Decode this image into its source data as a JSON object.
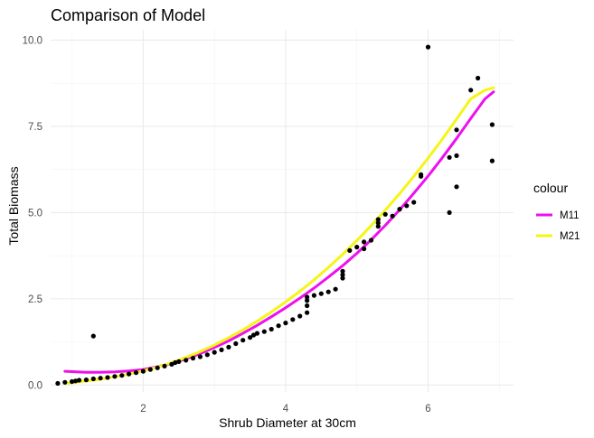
{
  "chart_data": {
    "type": "scatter",
    "title": "Comparison of Model",
    "xlabel": "Shrub Diameter at 30cm",
    "ylabel": "Total Biomass",
    "xlim": [
      0.7,
      7.2
    ],
    "ylim": [
      -0.2,
      10.3
    ],
    "x_ticks": [
      2,
      4,
      6
    ],
    "x_tick_labels": [
      "2",
      "4",
      "6"
    ],
    "y_ticks": [
      0,
      2.5,
      5,
      7.5,
      10
    ],
    "y_tick_labels": [
      "0.0",
      "2.5",
      "5.0",
      "7.5",
      "10.0"
    ],
    "grid": true,
    "legend": {
      "title": "colour",
      "placement": "right"
    },
    "points": [
      [
        0.8,
        0.05
      ],
      [
        0.9,
        0.08
      ],
      [
        1.0,
        0.1
      ],
      [
        1.05,
        0.12
      ],
      [
        1.1,
        0.14
      ],
      [
        1.2,
        0.15
      ],
      [
        1.3,
        1.42
      ],
      [
        1.3,
        0.18
      ],
      [
        1.4,
        0.2
      ],
      [
        1.5,
        0.22
      ],
      [
        1.6,
        0.25
      ],
      [
        1.7,
        0.28
      ],
      [
        1.8,
        0.32
      ],
      [
        1.9,
        0.36
      ],
      [
        2.0,
        0.4
      ],
      [
        2.1,
        0.45
      ],
      [
        2.2,
        0.5
      ],
      [
        2.3,
        0.55
      ],
      [
        2.4,
        0.6
      ],
      [
        2.45,
        0.65
      ],
      [
        2.5,
        0.68
      ],
      [
        2.6,
        0.72
      ],
      [
        2.7,
        0.78
      ],
      [
        2.8,
        0.82
      ],
      [
        2.9,
        0.88
      ],
      [
        3.0,
        0.95
      ],
      [
        3.1,
        1.02
      ],
      [
        3.2,
        1.1
      ],
      [
        3.3,
        1.2
      ],
      [
        3.4,
        1.3
      ],
      [
        3.5,
        1.38
      ],
      [
        3.55,
        1.45
      ],
      [
        3.6,
        1.5
      ],
      [
        3.7,
        1.55
      ],
      [
        3.8,
        1.62
      ],
      [
        3.9,
        1.72
      ],
      [
        4.0,
        1.8
      ],
      [
        4.1,
        1.9
      ],
      [
        4.2,
        2.0
      ],
      [
        4.3,
        2.1
      ],
      [
        4.3,
        2.3
      ],
      [
        4.3,
        2.45
      ],
      [
        4.3,
        2.55
      ],
      [
        4.4,
        2.6
      ],
      [
        4.5,
        2.65
      ],
      [
        4.6,
        2.7
      ],
      [
        4.7,
        2.78
      ],
      [
        4.8,
        3.1
      ],
      [
        4.8,
        3.3
      ],
      [
        4.8,
        3.2
      ],
      [
        4.9,
        3.9
      ],
      [
        5.0,
        4.0
      ],
      [
        5.1,
        4.15
      ],
      [
        5.1,
        3.95
      ],
      [
        5.2,
        4.2
      ],
      [
        5.3,
        4.6
      ],
      [
        5.3,
        4.7
      ],
      [
        5.3,
        4.8
      ],
      [
        5.4,
        4.95
      ],
      [
        5.5,
        4.9
      ],
      [
        5.6,
        5.1
      ],
      [
        5.7,
        5.2
      ],
      [
        5.8,
        5.3
      ],
      [
        5.9,
        6.05
      ],
      [
        5.9,
        6.1
      ],
      [
        6.0,
        9.8
      ],
      [
        6.3,
        6.6
      ],
      [
        6.3,
        5.0
      ],
      [
        6.4,
        5.75
      ],
      [
        6.4,
        6.65
      ],
      [
        6.4,
        7.4
      ],
      [
        6.6,
        8.55
      ],
      [
        6.7,
        8.9
      ],
      [
        6.9,
        7.55
      ],
      [
        6.9,
        6.5
      ]
    ],
    "series": [
      {
        "name": "M11",
        "color": "#ee10ee",
        "x": [
          0.9,
          1.0,
          1.2,
          1.4,
          1.6,
          1.8,
          2.0,
          2.2,
          2.4,
          2.6,
          2.8,
          3.0,
          3.2,
          3.4,
          3.6,
          3.8,
          4.0,
          4.2,
          4.4,
          4.6,
          4.8,
          5.0,
          5.2,
          5.4,
          5.6,
          5.8,
          6.0,
          6.2,
          6.4,
          6.6,
          6.8,
          6.92
        ],
        "y": [
          0.4,
          0.39,
          0.37,
          0.37,
          0.38,
          0.41,
          0.45,
          0.53,
          0.63,
          0.76,
          0.91,
          1.09,
          1.28,
          1.5,
          1.73,
          1.98,
          2.24,
          2.52,
          2.81,
          3.13,
          3.46,
          3.82,
          4.21,
          4.63,
          5.08,
          5.56,
          6.06,
          6.59,
          7.15,
          7.73,
          8.3,
          8.5
        ]
      },
      {
        "name": "M21",
        "color": "#f5f516",
        "x": [
          0.9,
          1.0,
          1.2,
          1.4,
          1.6,
          1.8,
          2.0,
          2.2,
          2.4,
          2.6,
          2.8,
          3.0,
          3.2,
          3.4,
          3.6,
          3.8,
          4.0,
          4.2,
          4.4,
          4.6,
          4.8,
          5.0,
          5.2,
          5.4,
          5.6,
          5.8,
          6.0,
          6.2,
          6.4,
          6.6,
          6.8,
          6.92
        ],
        "y": [
          0.05,
          0.07,
          0.12,
          0.17,
          0.24,
          0.32,
          0.41,
          0.52,
          0.65,
          0.8,
          0.97,
          1.16,
          1.37,
          1.6,
          1.85,
          2.12,
          2.41,
          2.72,
          3.05,
          3.41,
          3.79,
          4.19,
          4.62,
          5.07,
          5.55,
          6.05,
          6.58,
          7.13,
          7.71,
          8.3,
          8.55,
          8.62
        ]
      }
    ]
  }
}
